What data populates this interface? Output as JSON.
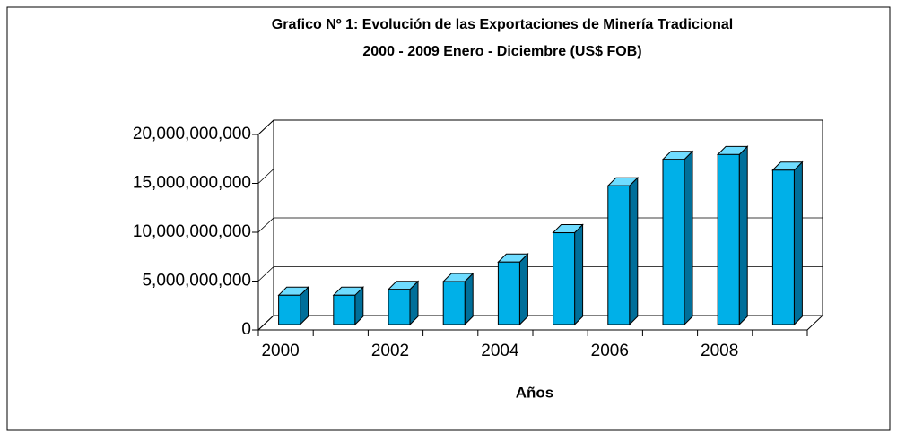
{
  "chart_data": {
    "type": "bar",
    "title": "Grafico Nº 1: Evolución de las Exportaciones de Minería Tradicional",
    "subtitle": "2000 - 2009  Enero - Diciembre (US$ FOB)",
    "x_label": "Años",
    "categories": [
      "2000",
      null,
      "2002",
      null,
      "2004",
      null,
      "2006",
      null,
      "2008",
      null
    ],
    "values": [
      3000000000,
      3000000000,
      3600000000,
      4400000000,
      6400000000,
      9400000000,
      14200000000,
      16900000000,
      17400000000,
      15800000000
    ],
    "color": "#00b0e8",
    "ylim": [
      0,
      20000000000
    ],
    "yticks": [
      {
        "value": 0,
        "label": "0"
      },
      {
        "value": 5000000000,
        "label": "5,000,000,000"
      },
      {
        "value": 10000000000,
        "label": "10,000,000,000"
      },
      {
        "value": 15000000000,
        "label": "15,000,000,000"
      },
      {
        "value": 20000000000,
        "label": "20,000,000,000"
      }
    ],
    "grid": true
  }
}
